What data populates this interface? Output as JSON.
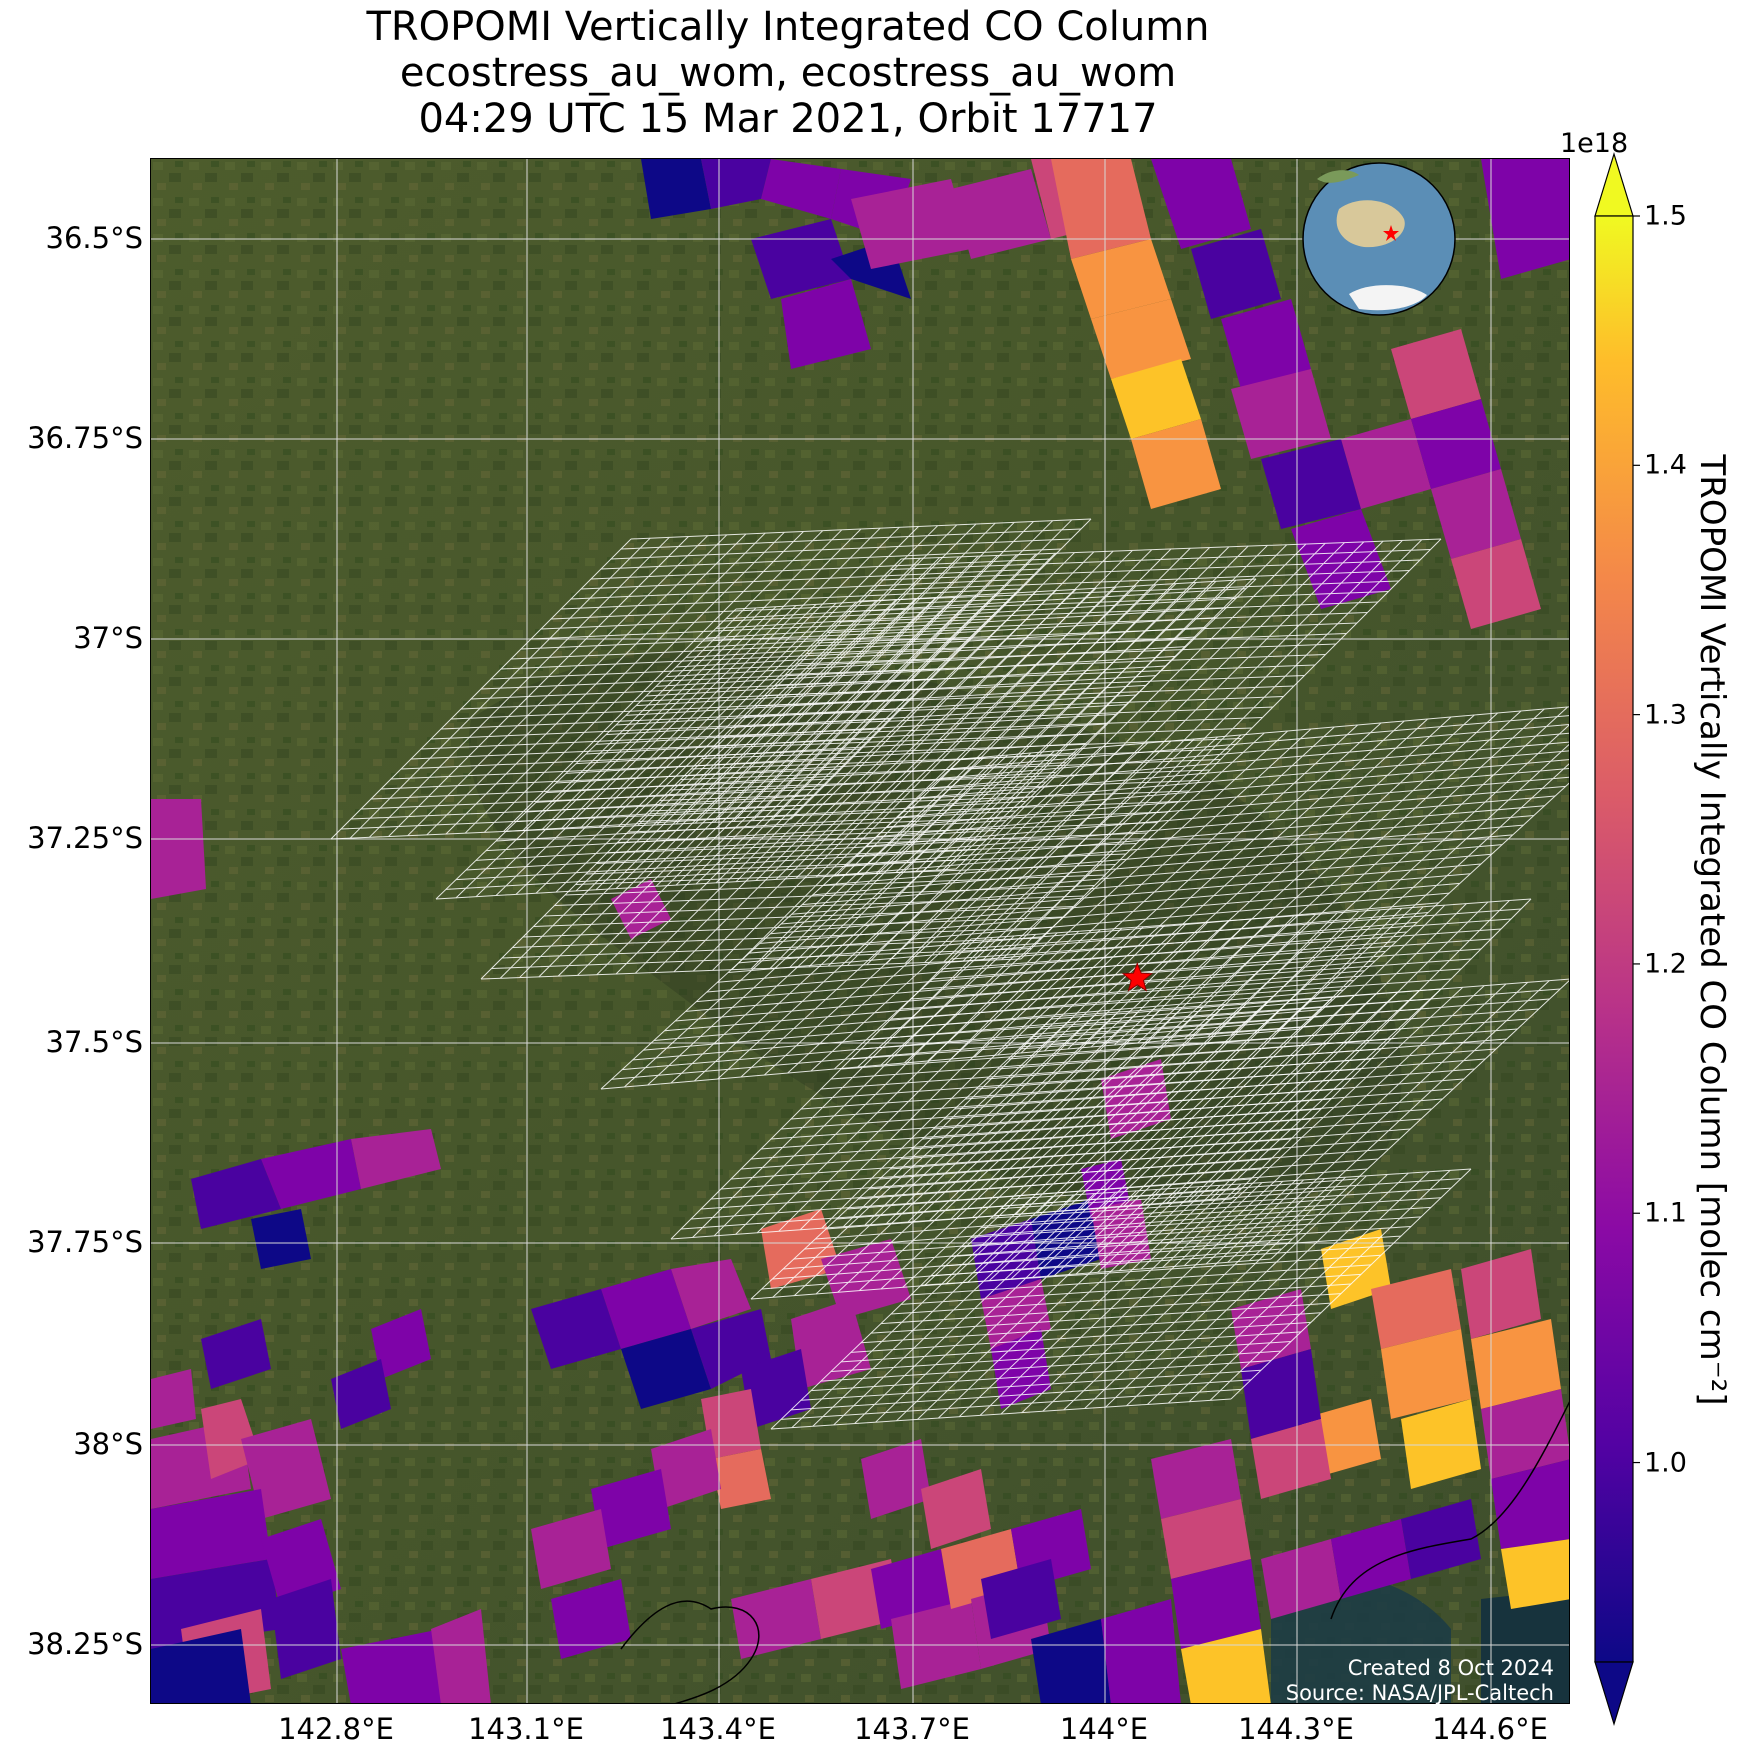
{
  "title": {
    "line1": "TROPOMI Vertically Integrated CO Column",
    "line2": "ecostress_au_wom, ecostress_au_wom",
    "line3": "04:29 UTC 15 Mar 2021, Orbit 17717"
  },
  "map": {
    "lat_ticks": [
      "36.5°S",
      "36.75°S",
      "37°S",
      "37.25°S",
      "37.5°S",
      "37.75°S",
      "38°S",
      "38.25°S"
    ],
    "lon_ticks": [
      "142.8°E",
      "143.1°E",
      "143.4°E",
      "143.7°E",
      "144°E",
      "144.3°E",
      "144.6°E"
    ],
    "lat_range": [
      -38.3,
      -36.4
    ],
    "lon_range": [
      142.5,
      144.7
    ],
    "target_marker": {
      "lon": 144.05,
      "lat": -37.42,
      "symbol": "red-star"
    },
    "colors": {
      "basemap": "#4a5a2e",
      "gridlines": "#d8d8d8",
      "footprints": "#ffffff",
      "marker": "#ff0000"
    }
  },
  "colorbar": {
    "exponent": "1e18",
    "ticks": [
      "1.0",
      "1.1",
      "1.2",
      "1.3",
      "1.4",
      "1.5"
    ],
    "range": [
      0.92,
      1.5
    ],
    "extend": "both",
    "colormap": "plasma",
    "label": "TROPOMI Vertically Integrated CO Column [molec cm⁻²]"
  },
  "inset": {
    "name": "globe-locator",
    "marker": "red-star"
  },
  "credits": {
    "created": "Created 8 Oct 2024",
    "source": "Source: NASA/JPL-Caltech"
  }
}
